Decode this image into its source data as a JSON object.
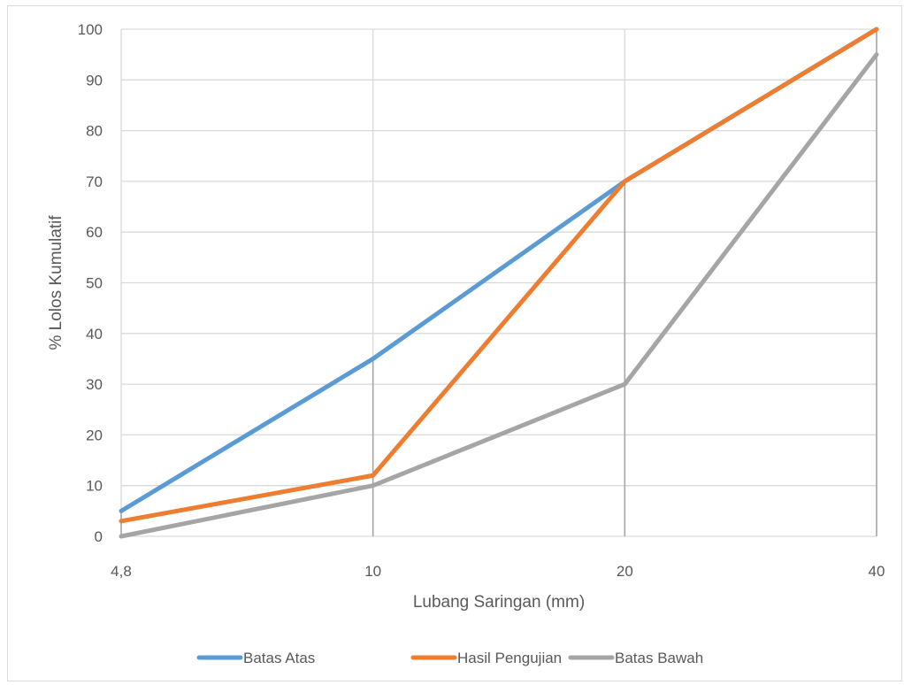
{
  "chart_data": {
    "type": "line",
    "categories": [
      "4,8",
      "10",
      "20",
      "40"
    ],
    "y_ticks": [
      "0",
      "10",
      "20",
      "30",
      "40",
      "50",
      "60",
      "70",
      "80",
      "90",
      "100"
    ],
    "ylim": [
      0,
      100
    ],
    "xlabel": "Lubang Saringan (mm)",
    "ylabel": "% Lolos Kumulatif",
    "grid": true,
    "legend_position": "bottom",
    "series": [
      {
        "name": "Batas Atas",
        "values": [
          5,
          35,
          70,
          100
        ],
        "color": "#5b9bd5"
      },
      {
        "name": "Hasil Pengujian",
        "values": [
          3,
          12,
          70,
          100
        ],
        "color": "#ed7d31"
      },
      {
        "name": "Batas Bawah",
        "values": [
          0,
          10,
          30,
          95
        ],
        "color": "#a5a5a5"
      }
    ]
  }
}
